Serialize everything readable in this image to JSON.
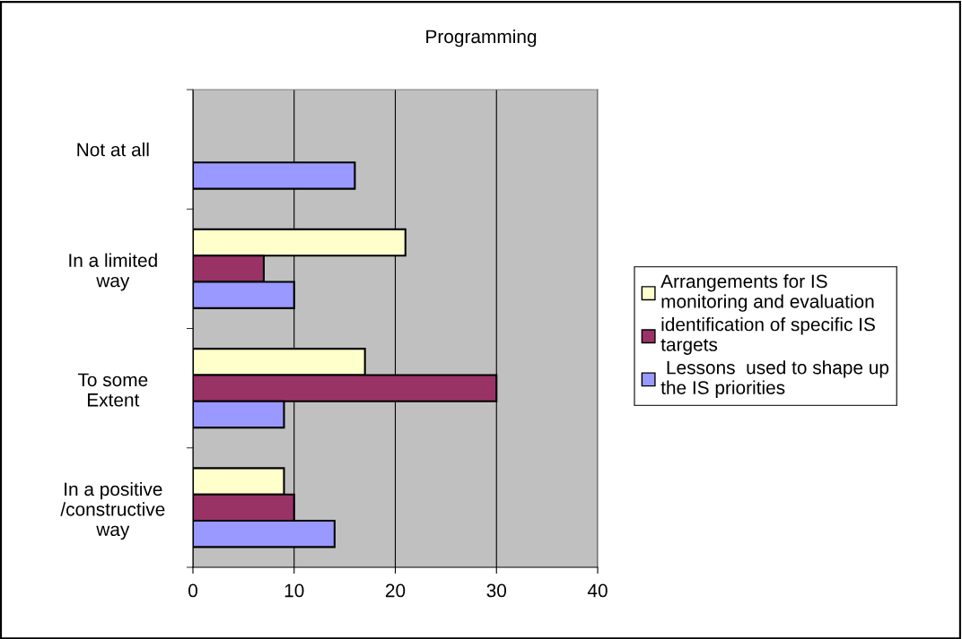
{
  "chart_data": {
    "type": "bar",
    "orientation": "horizontal",
    "title": "Programming",
    "categories": [
      "Not at all",
      "In a limited\nway",
      "To some\nExtent",
      "In a positive\n/constructive\nway"
    ],
    "series": [
      {
        "name": "Arrangements for IS\nmonitoring and evaluation",
        "color": "#ffffcc",
        "values": [
          null,
          21,
          17,
          9
        ]
      },
      {
        "name": "identification of specific IS\ntargets",
        "color": "#993366",
        "values": [
          null,
          7,
          30,
          10
        ]
      },
      {
        "name": " Lessons  used to shape up\nthe IS priorities",
        "color": "#9999ff",
        "values": [
          16,
          10,
          9,
          14
        ]
      }
    ],
    "xlim": [
      0,
      40
    ],
    "xticks": [
      0,
      10,
      20,
      30,
      40
    ],
    "grid": "x",
    "legend": "right"
  }
}
